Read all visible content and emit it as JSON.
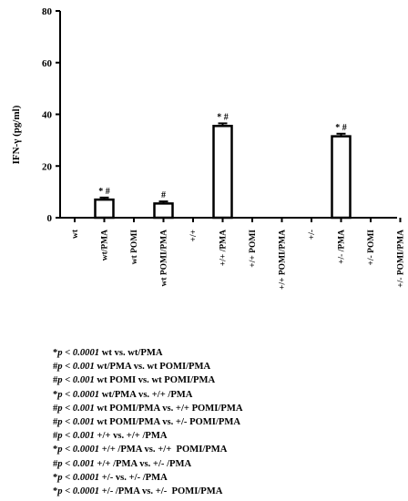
{
  "chart_data": {
    "type": "bar",
    "ylabel": "IFN-γ (pg/ml)",
    "ylim": [
      0,
      80
    ],
    "yticks": [
      0,
      20,
      40,
      60,
      80
    ],
    "categories": [
      "wt",
      "wt/PMA",
      "wt POMI",
      "wt POMI/PMA",
      "+/+",
      "+/+ /PMA",
      "+/+ POMI",
      "+/+ POMI/PMA",
      "+/-",
      "+/- /PMA",
      "+/- POMI",
      "+/- POMI/PMA"
    ],
    "values": [
      0,
      7,
      0,
      5.5,
      0,
      35.5,
      0,
      0,
      0,
      31.5,
      0,
      0
    ],
    "errors": [
      0,
      0.8,
      0,
      0.8,
      0,
      1.0,
      0,
      0,
      0,
      1.0,
      0,
      0
    ],
    "annotations": [
      "",
      "*  #",
      "",
      "#",
      "",
      "*  #",
      "",
      "",
      "",
      "*  #",
      "",
      ""
    ],
    "grid": false
  },
  "footnotes": [
    {
      "symbol": "*",
      "p": "p < 0.0001",
      "text": " wt vs. wt/PMA"
    },
    {
      "symbol": "#",
      "p": "p < 0.001",
      "text": " wt/PMA vs. wt POMI/PMA"
    },
    {
      "symbol": "#",
      "p": "p < 0.001",
      "text": " wt POMI vs. wt POMI/PMA"
    },
    {
      "symbol": "*",
      "p": "p < 0.0001",
      "text": " wt/PMA vs. +/+ /PMA"
    },
    {
      "symbol": "#",
      "p": "p < 0.001",
      "text": " wt POMI/PMA vs. +/+ POMI/PMA"
    },
    {
      "symbol": "#",
      "p": "p < 0.001",
      "text": " wt POMI/PMA vs. +/- POMI/PMA"
    },
    {
      "symbol": "#",
      "p": "p < 0.001",
      "text": " +/+ vs. +/+ /PMA"
    },
    {
      "symbol": "*",
      "p": "p < 0.0001",
      "text": " +/+ /PMA vs. +/+  POMI/PMA"
    },
    {
      "symbol": "#",
      "p": "p < 0.001",
      "text": " +/+ /PMA vs. +/- /PMA"
    },
    {
      "symbol": "*",
      "p": "p < 0.0001",
      "text": " +/- vs. +/- /PMA"
    },
    {
      "symbol": "*",
      "p": "p < 0.0001",
      "text": " +/- /PMA vs. +/-  POMI/PMA"
    }
  ]
}
